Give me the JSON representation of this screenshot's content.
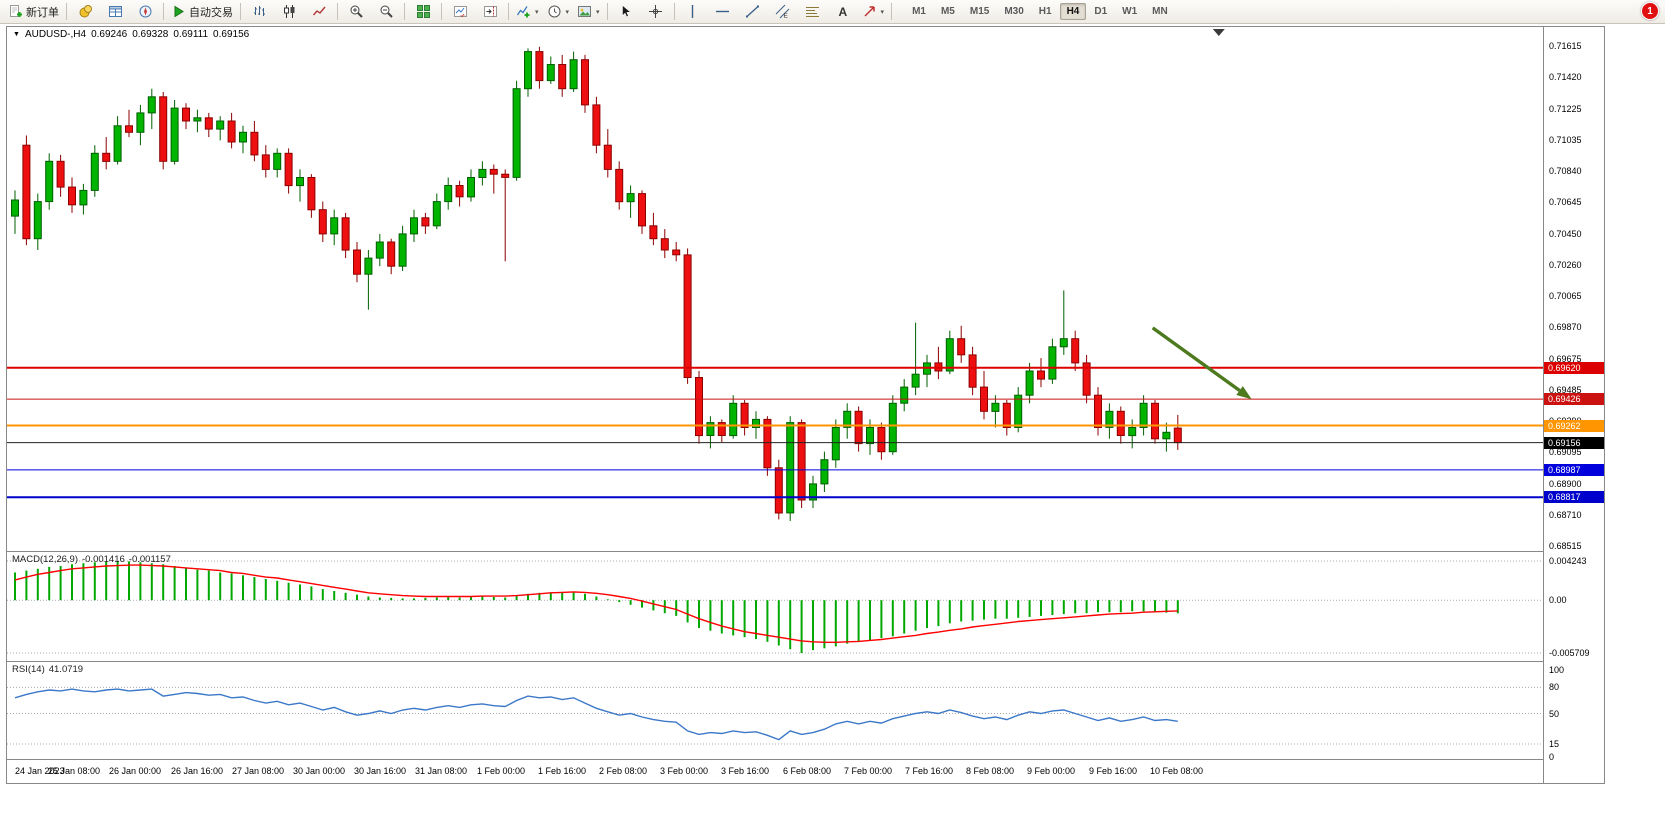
{
  "icons": {
    "dropdown": "▾",
    "window_menu": "▼"
  },
  "toolbar": {
    "items": [
      {
        "type": "button",
        "name": "new-order",
        "icon": "new-order-icon",
        "label": "新订单"
      },
      {
        "type": "separator"
      },
      {
        "type": "button",
        "name": "market-watch",
        "icon": "market-watch-icon"
      },
      {
        "type": "button",
        "name": "data-window",
        "icon": "data-window-icon"
      },
      {
        "type": "button",
        "name": "navigator",
        "icon": "navigator-icon"
      },
      {
        "type": "separator"
      },
      {
        "type": "button",
        "name": "auto-trading",
        "icon": "autotrading-icon",
        "label": "自动交易"
      },
      {
        "type": "separator"
      },
      {
        "type": "button",
        "name": "bar-chart-mode",
        "icon": "bar-chart-icon"
      },
      {
        "type": "button",
        "name": "candlestick-mode",
        "icon": "candlestick-icon"
      },
      {
        "type": "button",
        "name": "line-chart-mode",
        "icon": "line-chart-icon"
      },
      {
        "type": "separator"
      },
      {
        "type": "button",
        "name": "zoom-in",
        "icon": "zoom-in-icon"
      },
      {
        "type": "button",
        "name": "zoom-out",
        "icon": "zoom-out-icon"
      },
      {
        "type": "separator"
      },
      {
        "type": "button",
        "name": "tile-windows",
        "icon": "tile-windows-icon"
      },
      {
        "type": "separator"
      },
      {
        "type": "button",
        "name": "auto-scroll",
        "icon": "auto-scroll-icon"
      },
      {
        "type": "button",
        "name": "chart-shift",
        "icon": "chart-shift-icon"
      },
      {
        "type": "separator"
      },
      {
        "type": "button",
        "name": "indicators",
        "icon": "indicators-icon",
        "dropdown": true
      },
      {
        "type": "button",
        "name": "periods",
        "icon": "clock-icon",
        "dropdown": true
      },
      {
        "type": "button",
        "name": "templates",
        "icon": "template-icon",
        "dropdown": true
      },
      {
        "type": "separator"
      },
      {
        "type": "button",
        "name": "cursor-tool",
        "icon": "cursor-icon"
      },
      {
        "type": "button",
        "name": "crosshair-tool",
        "icon": "crosshair-icon"
      },
      {
        "type": "separator"
      },
      {
        "type": "button",
        "name": "vertical-line-tool",
        "icon": "vertical-line-icon"
      },
      {
        "type": "button",
        "name": "horizontal-line-tool",
        "icon": "horizontal-line-icon"
      },
      {
        "type": "button",
        "name": "trendline-tool",
        "icon": "trendline-icon"
      },
      {
        "type": "button",
        "name": "equidistant-channel-tool",
        "icon": "channel-icon"
      },
      {
        "type": "button",
        "name": "fibonacci-tool",
        "icon": "fibonacci-icon"
      },
      {
        "type": "button",
        "name": "text-tool",
        "icon": "text-icon"
      },
      {
        "type": "button",
        "name": "arrows-tool",
        "icon": "arrows-icon",
        "dropdown": true
      },
      {
        "type": "separator"
      }
    ],
    "timeframes": [
      "M1",
      "M5",
      "M15",
      "M30",
      "H1",
      "H4",
      "D1",
      "W1",
      "MN"
    ],
    "active_timeframe": "H4",
    "notification_badge": "1"
  },
  "chart": {
    "symbol_period": "AUDUSD-,H4",
    "open": "0.69246",
    "high": "0.69328",
    "low": "0.69111",
    "close": "0.69156"
  },
  "chart_data": {
    "type": "candlestick",
    "symbol": "AUDUSD-",
    "period": "H4",
    "price_range": {
      "max": 0.71615,
      "min": 0.68515
    },
    "price_axis": [
      0.71615,
      0.7142,
      0.71225,
      0.71035,
      0.7084,
      0.70645,
      0.7045,
      0.7026,
      0.70065,
      0.6987,
      0.69675,
      0.69485,
      0.6929,
      0.69095,
      0.689,
      0.6871,
      0.68515
    ],
    "time_axis": [
      "24 Jan 2023",
      "25 Jan 08:00",
      "26 Jan 00:00",
      "26 Jan 16:00",
      "27 Jan 08:00",
      "30 Jan 00:00",
      "30 Jan 16:00",
      "31 Jan 08:00",
      "1 Feb 00:00",
      "1 Feb 16:00",
      "2 Feb 08:00",
      "3 Feb 00:00",
      "3 Feb 16:00",
      "6 Feb 08:00",
      "7 Feb 00:00",
      "7 Feb 16:00",
      "8 Feb 08:00",
      "9 Feb 00:00",
      "9 Feb 16:00",
      "10 Feb 08:00"
    ],
    "candles": [
      [
        0.7056,
        0.7072,
        0.7045,
        0.7066
      ],
      [
        0.71,
        0.7106,
        0.7038,
        0.7042
      ],
      [
        0.7042,
        0.707,
        0.7035,
        0.7065
      ],
      [
        0.7065,
        0.7095,
        0.706,
        0.709
      ],
      [
        0.709,
        0.7094,
        0.7068,
        0.7074
      ],
      [
        0.7074,
        0.708,
        0.7058,
        0.7063
      ],
      [
        0.7063,
        0.7076,
        0.7057,
        0.7072
      ],
      [
        0.7072,
        0.71,
        0.7068,
        0.7095
      ],
      [
        0.7095,
        0.7105,
        0.7085,
        0.709
      ],
      [
        0.709,
        0.7118,
        0.7088,
        0.7112
      ],
      [
        0.7112,
        0.7122,
        0.7105,
        0.7108
      ],
      [
        0.7108,
        0.7125,
        0.71,
        0.712
      ],
      [
        0.712,
        0.7135,
        0.711,
        0.713
      ],
      [
        0.713,
        0.7133,
        0.7085,
        0.709
      ],
      [
        0.709,
        0.7128,
        0.7088,
        0.7123
      ],
      [
        0.7123,
        0.7126,
        0.711,
        0.7115
      ],
      [
        0.7115,
        0.7122,
        0.7108,
        0.7117
      ],
      [
        0.7117,
        0.712,
        0.7105,
        0.711
      ],
      [
        0.711,
        0.7118,
        0.7103,
        0.7115
      ],
      [
        0.7115,
        0.712,
        0.7098,
        0.7102
      ],
      [
        0.7102,
        0.7112,
        0.7095,
        0.7108
      ],
      [
        0.7108,
        0.7115,
        0.709,
        0.7094
      ],
      [
        0.7094,
        0.71,
        0.708,
        0.7085
      ],
      [
        0.7085,
        0.7098,
        0.708,
        0.7095
      ],
      [
        0.7095,
        0.7098,
        0.707,
        0.7075
      ],
      [
        0.7075,
        0.7085,
        0.7065,
        0.708
      ],
      [
        0.708,
        0.7082,
        0.7055,
        0.706
      ],
      [
        0.706,
        0.7065,
        0.704,
        0.7045
      ],
      [
        0.7045,
        0.706,
        0.7038,
        0.7055
      ],
      [
        0.7055,
        0.7058,
        0.703,
        0.7035
      ],
      [
        0.7035,
        0.704,
        0.7015,
        0.702
      ],
      [
        0.702,
        0.7035,
        0.6998,
        0.703
      ],
      [
        0.703,
        0.7045,
        0.7025,
        0.704
      ],
      [
        0.704,
        0.7042,
        0.702,
        0.7025
      ],
      [
        0.7025,
        0.705,
        0.7022,
        0.7045
      ],
      [
        0.7045,
        0.706,
        0.704,
        0.7055
      ],
      [
        0.7055,
        0.7058,
        0.7045,
        0.705
      ],
      [
        0.705,
        0.707,
        0.7048,
        0.7065
      ],
      [
        0.7065,
        0.708,
        0.706,
        0.7075
      ],
      [
        0.7075,
        0.7078,
        0.7062,
        0.7068
      ],
      [
        0.7068,
        0.7085,
        0.7065,
        0.708
      ],
      [
        0.708,
        0.709,
        0.7075,
        0.7085
      ],
      [
        0.7085,
        0.7088,
        0.707,
        0.7082
      ],
      [
        0.7082,
        0.7085,
        0.7028,
        0.708
      ],
      [
        0.708,
        0.714,
        0.7078,
        0.7135
      ],
      [
        0.7135,
        0.716,
        0.713,
        0.7158
      ],
      [
        0.7158,
        0.7161,
        0.7135,
        0.714
      ],
      [
        0.714,
        0.7155,
        0.7138,
        0.715
      ],
      [
        0.715,
        0.7156,
        0.713,
        0.7135
      ],
      [
        0.7135,
        0.7158,
        0.7133,
        0.7153
      ],
      [
        0.7153,
        0.7156,
        0.712,
        0.7125
      ],
      [
        0.7125,
        0.713,
        0.7095,
        0.71
      ],
      [
        0.71,
        0.711,
        0.708,
        0.7085
      ],
      [
        0.7085,
        0.709,
        0.706,
        0.7065
      ],
      [
        0.7065,
        0.7075,
        0.7055,
        0.707
      ],
      [
        0.707,
        0.7072,
        0.7045,
        0.705
      ],
      [
        0.705,
        0.7058,
        0.7038,
        0.7042
      ],
      [
        0.7042,
        0.7048,
        0.703,
        0.7035
      ],
      [
        0.7035,
        0.704,
        0.7028,
        0.7032
      ],
      [
        0.7032,
        0.7036,
        0.6952,
        0.6956
      ],
      [
        0.6956,
        0.696,
        0.6915,
        0.692
      ],
      [
        0.692,
        0.6932,
        0.6912,
        0.6928
      ],
      [
        0.6928,
        0.693,
        0.6916,
        0.692
      ],
      [
        0.692,
        0.6945,
        0.6918,
        0.694
      ],
      [
        0.694,
        0.6942,
        0.692,
        0.6925
      ],
      [
        0.6925,
        0.6935,
        0.6918,
        0.693
      ],
      [
        0.693,
        0.6932,
        0.6895,
        0.69
      ],
      [
        0.69,
        0.6905,
        0.6868,
        0.6872
      ],
      [
        0.6872,
        0.6932,
        0.6867,
        0.6928
      ],
      [
        0.6928,
        0.693,
        0.6875,
        0.688
      ],
      [
        0.688,
        0.6895,
        0.6875,
        0.689
      ],
      [
        0.689,
        0.691,
        0.6885,
        0.6905
      ],
      [
        0.6905,
        0.693,
        0.69,
        0.6925
      ],
      [
        0.6925,
        0.694,
        0.6918,
        0.6935
      ],
      [
        0.6935,
        0.6938,
        0.691,
        0.6915
      ],
      [
        0.6915,
        0.693,
        0.6908,
        0.6925
      ],
      [
        0.6925,
        0.6928,
        0.6905,
        0.691
      ],
      [
        0.691,
        0.6945,
        0.6908,
        0.694
      ],
      [
        0.694,
        0.6955,
        0.6935,
        0.695
      ],
      [
        0.695,
        0.699,
        0.6945,
        0.6958
      ],
      [
        0.6958,
        0.697,
        0.695,
        0.6965
      ],
      [
        0.6965,
        0.6975,
        0.6955,
        0.696
      ],
      [
        0.696,
        0.6985,
        0.6958,
        0.698
      ],
      [
        0.698,
        0.6988,
        0.6965,
        0.697
      ],
      [
        0.697,
        0.6975,
        0.6945,
        0.695
      ],
      [
        0.695,
        0.696,
        0.693,
        0.6935
      ],
      [
        0.6935,
        0.6945,
        0.6925,
        0.694
      ],
      [
        0.694,
        0.6942,
        0.692,
        0.6925
      ],
      [
        0.6925,
        0.695,
        0.6922,
        0.6945
      ],
      [
        0.6945,
        0.6965,
        0.694,
        0.696
      ],
      [
        0.696,
        0.6968,
        0.695,
        0.6955
      ],
      [
        0.6955,
        0.698,
        0.6952,
        0.6975
      ],
      [
        0.6975,
        0.701,
        0.697,
        0.698
      ],
      [
        0.698,
        0.6985,
        0.696,
        0.6965
      ],
      [
        0.6965,
        0.697,
        0.694,
        0.6945
      ],
      [
        0.6945,
        0.695,
        0.692,
        0.6925
      ],
      [
        0.6925,
        0.694,
        0.6918,
        0.6935
      ],
      [
        0.6935,
        0.6938,
        0.6915,
        0.692
      ],
      [
        0.692,
        0.693,
        0.6912,
        0.6925
      ],
      [
        0.6925,
        0.6945,
        0.692,
        0.694
      ],
      [
        0.694,
        0.6942,
        0.6915,
        0.6918
      ],
      [
        0.6918,
        0.6928,
        0.691,
        0.6922
      ],
      [
        0.69246,
        0.69328,
        0.69111,
        0.69156
      ]
    ],
    "levels": [
      {
        "price": 0.6962,
        "label": "0.69620",
        "color": "#dd0000",
        "width": 2
      },
      {
        "price": 0.69426,
        "label": "0.69426",
        "color": "#cc1111",
        "width": 1
      },
      {
        "price": 0.69262,
        "label": "0.69262",
        "color": "#ff9500",
        "width": 2
      },
      {
        "price": 0.69156,
        "label": "0.69156",
        "color": "#222222",
        "width": 1,
        "current": true
      },
      {
        "price": 0.68987,
        "label": "0.68987",
        "color": "#0000dd",
        "width": 1
      },
      {
        "price": 0.68817,
        "label": "0.68817",
        "color": "#0000cc",
        "width": 2
      }
    ],
    "arrow": {
      "from": {
        "bar": 99.8,
        "price": 0.69867
      },
      "to": {
        "bar": 108.2,
        "price": 0.69439
      },
      "color": "#4d7a1e"
    },
    "shift_marker_bar": 105.6,
    "macd": {
      "name": "MACD(12,26,9)",
      "value1": "-0.001416",
      "value2": "-0.001157",
      "scale": [
        {
          "value": 0.004243,
          "label": "0.004243"
        },
        {
          "value": 0,
          "label": "0.00"
        },
        {
          "value": -0.005709,
          "label": "-0.005709"
        }
      ],
      "range": {
        "max": 0.004243,
        "min": -0.005709
      },
      "histogram": [
        0.003,
        0.0032,
        0.0034,
        0.0036,
        0.0037,
        0.0039,
        0.004,
        0.0041,
        0.0042,
        0.004243,
        0.0042,
        0.0041,
        0.004,
        0.0039,
        0.0037,
        0.0035,
        0.0033,
        0.0032,
        0.003,
        0.0029,
        0.0027,
        0.0025,
        0.0023,
        0.0021,
        0.0019,
        0.0017,
        0.0015,
        0.0012,
        0.001,
        0.0008,
        0.0006,
        0.0004,
        0.0003,
        0.00025,
        0.0002,
        0.0002,
        0.00025,
        0.0003,
        0.00035,
        0.0003,
        0.00035,
        0.0004,
        0.00035,
        0.0003,
        0.0005,
        0.0007,
        0.0008,
        0.00085,
        0.0009,
        0.00085,
        0.0007,
        0.0004,
        0.0001,
        -0.0002,
        -0.0005,
        -0.0008,
        -0.0011,
        -0.0014,
        -0.0017,
        -0.0024,
        -0.003,
        -0.0033,
        -0.0036,
        -0.0038,
        -0.004,
        -0.0042,
        -0.0045,
        -0.0049,
        -0.0053,
        -0.005709,
        -0.0054,
        -0.0052,
        -0.005,
        -0.0047,
        -0.0045,
        -0.0043,
        -0.0041,
        -0.0039,
        -0.0036,
        -0.0033,
        -0.003,
        -0.0028,
        -0.0025,
        -0.0023,
        -0.0022,
        -0.0021,
        -0.002,
        -0.002,
        -0.0019,
        -0.0018,
        -0.0017,
        -0.0016,
        -0.0015,
        -0.0014,
        -0.0014,
        -0.0013,
        -0.0013,
        -0.0013,
        -0.0012,
        -0.0012,
        -0.0013,
        -0.00135,
        -0.001416
      ],
      "signal": [
        0.0022,
        0.0025,
        0.0028,
        0.003,
        0.0032,
        0.0034,
        0.0035,
        0.0036,
        0.0037,
        0.00375,
        0.0038,
        0.0038,
        0.00375,
        0.0037,
        0.0036,
        0.0035,
        0.0034,
        0.0033,
        0.0032,
        0.003,
        0.0029,
        0.0027,
        0.0025,
        0.0024,
        0.0022,
        0.002,
        0.0018,
        0.0016,
        0.0014,
        0.0012,
        0.001,
        0.0008,
        0.0007,
        0.0006,
        0.0005,
        0.00045,
        0.0004,
        0.0004,
        0.0004,
        0.0004,
        0.0004,
        0.00045,
        0.00045,
        0.00045,
        0.0005,
        0.0006,
        0.0007,
        0.0008,
        0.00085,
        0.0009,
        0.00085,
        0.00075,
        0.0006,
        0.0004,
        0.0002,
        -0.0001,
        -0.0004,
        -0.0007,
        -0.001,
        -0.0015,
        -0.002,
        -0.0024,
        -0.0028,
        -0.0031,
        -0.0034,
        -0.0036,
        -0.0038,
        -0.004,
        -0.0042,
        -0.0044,
        -0.0045,
        -0.00455,
        -0.00455,
        -0.0045,
        -0.00445,
        -0.00435,
        -0.00425,
        -0.0041,
        -0.00395,
        -0.0038,
        -0.0036,
        -0.00345,
        -0.00325,
        -0.0031,
        -0.0029,
        -0.00275,
        -0.0026,
        -0.00245,
        -0.0023,
        -0.0022,
        -0.0021,
        -0.002,
        -0.0019,
        -0.0018,
        -0.0017,
        -0.0016,
        -0.0015,
        -0.00145,
        -0.0014,
        -0.0013,
        -0.00125,
        -0.0012,
        -0.001157
      ]
    },
    "rsi": {
      "name": "RSI(14)",
      "value": "41.0719",
      "scale": [
        {
          "value": 100,
          "label": "100"
        },
        {
          "value": 80,
          "label": "80"
        },
        {
          "value": 50,
          "label": "50"
        },
        {
          "value": 15,
          "label": "15"
        },
        {
          "value": 0,
          "label": "0"
        }
      ],
      "dotted_levels": [
        80,
        50,
        15
      ],
      "range": {
        "max": 100,
        "min": 0
      },
      "values": [
        68,
        72,
        75,
        77,
        76,
        78,
        76,
        75,
        77,
        78,
        76,
        77,
        78,
        70,
        72,
        74,
        73,
        71,
        72,
        68,
        69,
        65,
        62,
        64,
        60,
        62,
        58,
        54,
        57,
        52,
        48,
        50,
        53,
        50,
        54,
        56,
        54,
        57,
        59,
        57,
        60,
        61,
        59,
        58,
        65,
        70,
        68,
        69,
        66,
        68,
        62,
        56,
        52,
        48,
        50,
        46,
        43,
        41,
        40,
        30,
        26,
        28,
        27,
        30,
        28,
        29,
        25,
        20,
        30,
        26,
        28,
        32,
        38,
        41,
        38,
        41,
        39,
        44,
        47,
        50,
        52,
        50,
        54,
        51,
        47,
        44,
        46,
        43,
        48,
        52,
        50,
        53,
        54,
        50,
        46,
        42,
        45,
        41,
        43,
        46,
        42,
        43,
        41.07
      ]
    }
  }
}
